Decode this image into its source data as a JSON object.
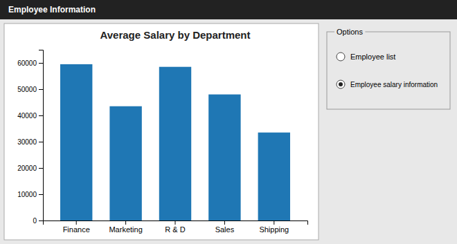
{
  "chart_data": {
    "type": "bar",
    "title": "Average Salary by Department",
    "categories": [
      "Finance",
      "Marketing",
      "R & D",
      "Sales",
      "Shipping"
    ],
    "values": [
      59500,
      43500,
      58500,
      48000,
      33500
    ],
    "ylim": [
      0,
      65000
    ],
    "yticks": [
      0,
      10000,
      20000,
      30000,
      40000,
      50000,
      60000
    ],
    "grid": false,
    "annotations": [
      "Employee Information",
      "Options",
      "Employee list",
      "Employee salary information"
    ]
  }
}
